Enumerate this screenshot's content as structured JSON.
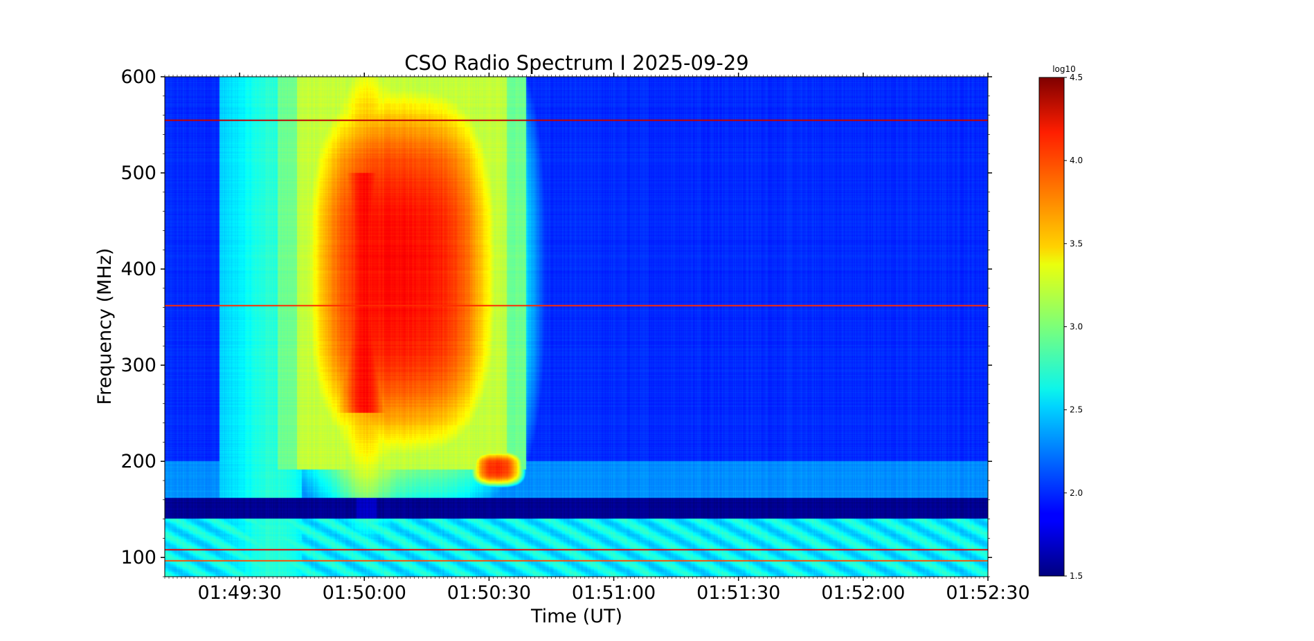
{
  "chart_data": {
    "type": "heatmap",
    "title": "CSO Radio Spectrum I 2025-09-29",
    "xlabel": "Time (UT)",
    "ylabel": "Frequency (MHz)",
    "x_ticks": [
      "01:49:30",
      "01:50:00",
      "01:50:30",
      "01:51:00",
      "01:51:30",
      "01:52:00",
      "01:52:30"
    ],
    "x_tick_seconds": [
      30,
      60,
      90,
      120,
      150,
      180,
      210
    ],
    "x_range_seconds": [
      12,
      210
    ],
    "y_ticks": [
      100,
      200,
      300,
      400,
      500,
      600
    ],
    "ylim": [
      80,
      600
    ],
    "colorbar": {
      "label": "log10",
      "range": [
        1.5,
        4.5
      ],
      "ticks": [
        "1.5",
        "2.0",
        "2.5",
        "3.0",
        "3.5",
        "4.0",
        "4.5"
      ],
      "colormap": "jet"
    },
    "features": [
      {
        "kind": "burst",
        "t_start": 45,
        "t_end": 93,
        "f_low": 195,
        "f_high": 600,
        "peak_log10": 4.1
      },
      {
        "kind": "burst",
        "t_start": 86,
        "t_end": 98,
        "f_low": 175,
        "f_high": 210,
        "peak_log10": 4.0
      },
      {
        "kind": "band_gap",
        "f_low": 140,
        "f_high": 162,
        "level_log10": 1.55
      },
      {
        "kind": "rfi_line",
        "freq": 555,
        "level_log10": 4.3
      },
      {
        "kind": "rfi_line",
        "freq": 362,
        "level_log10": 4.0
      },
      {
        "kind": "rfi_line",
        "freq": 108,
        "level_log10": 4.2
      },
      {
        "kind": "rfi_line",
        "freq": 96,
        "level_log10": 3.9
      }
    ],
    "grid": false
  }
}
